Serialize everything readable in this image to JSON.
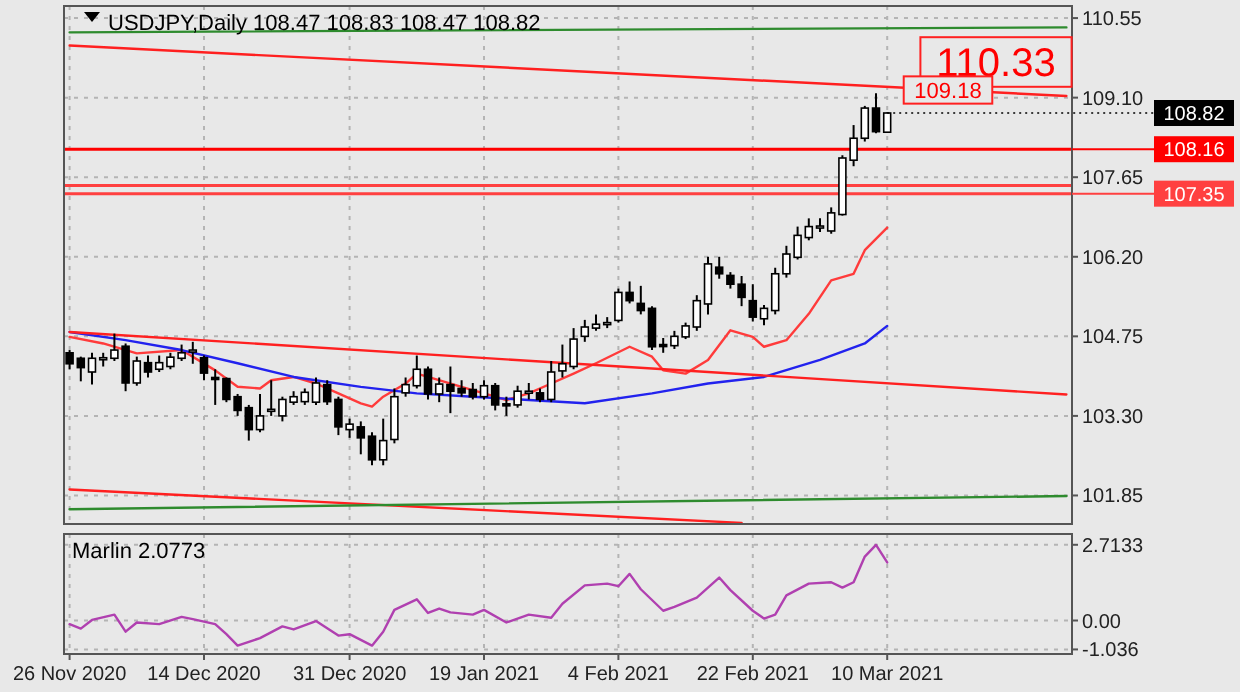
{
  "chart_data": [
    {
      "type": "candlestick",
      "title": "USDJPY,Daily 108.47 108.83 108.47 108.82",
      "categories": [
        "26 Nov 2020",
        null,
        null,
        null,
        null,
        null,
        null,
        null,
        null,
        null,
        null,
        null,
        "14 Dec 2020",
        null,
        null,
        null,
        null,
        null,
        null,
        null,
        null,
        null,
        null,
        null,
        null,
        "31 Dec 2020",
        null,
        null,
        null,
        null,
        null,
        null,
        null,
        null,
        null,
        null,
        null,
        "19 Jan 2021",
        null,
        null,
        null,
        null,
        null,
        null,
        null,
        null,
        null,
        null,
        null,
        "4 Feb 2021",
        null,
        null,
        null,
        null,
        null,
        null,
        null,
        null,
        null,
        null,
        null,
        "22 Feb 2021",
        null,
        null,
        null,
        null,
        null,
        null,
        null,
        null,
        null,
        null,
        null,
        "10 Mar 2021",
        null,
        null,
        null,
        null,
        null,
        null,
        null,
        null,
        null,
        null,
        null,
        null,
        null,
        null,
        null,
        null
      ],
      "ohlc": [
        [
          104.45,
          104.5,
          104.15,
          104.25
        ],
        [
          104.35,
          104.38,
          103.93,
          104.18
        ],
        [
          104.1,
          104.45,
          103.87,
          104.35
        ],
        [
          104.33,
          104.45,
          104.2,
          104.36
        ],
        [
          104.35,
          104.8,
          104.3,
          104.5
        ],
        [
          104.57,
          104.62,
          103.75,
          103.9
        ],
        [
          103.9,
          104.38,
          103.85,
          104.3
        ],
        [
          104.27,
          104.4,
          104.0,
          104.1
        ],
        [
          104.15,
          104.4,
          104.1,
          104.27
        ],
        [
          104.2,
          104.45,
          104.15,
          104.37
        ],
        [
          104.35,
          104.6,
          104.3,
          104.45
        ],
        [
          104.48,
          104.65,
          104.25,
          104.5
        ],
        [
          104.36,
          104.4,
          103.95,
          104.08
        ],
        [
          104.0,
          104.15,
          103.5,
          103.98
        ],
        [
          103.98,
          104.0,
          103.55,
          103.6
        ],
        [
          103.65,
          103.7,
          103.3,
          103.4
        ],
        [
          103.45,
          103.5,
          102.85,
          103.05
        ],
        [
          103.05,
          103.7,
          103.0,
          103.3
        ],
        [
          103.4,
          103.95,
          103.3,
          103.42
        ],
        [
          103.3,
          103.65,
          103.2,
          103.6
        ],
        [
          103.55,
          103.75,
          103.5,
          103.65
        ],
        [
          103.56,
          103.8,
          103.5,
          103.73
        ],
        [
          103.55,
          104.0,
          103.5,
          103.9
        ],
        [
          103.87,
          103.95,
          103.5,
          103.56
        ],
        [
          103.6,
          103.65,
          102.95,
          103.1
        ],
        [
          103.05,
          103.25,
          102.9,
          103.15
        ],
        [
          103.1,
          103.2,
          102.6,
          102.9
        ],
        [
          102.93,
          103.0,
          102.4,
          102.5
        ],
        [
          102.5,
          103.25,
          102.4,
          102.85
        ],
        [
          102.87,
          103.8,
          102.8,
          103.65
        ],
        [
          103.72,
          104.0,
          103.65,
          103.87
        ],
        [
          103.85,
          104.4,
          103.8,
          104.15
        ],
        [
          104.15,
          104.2,
          103.6,
          103.7
        ],
        [
          103.7,
          104.0,
          103.55,
          103.88
        ],
        [
          103.87,
          104.2,
          103.35,
          103.75
        ],
        [
          103.8,
          103.95,
          103.65,
          103.72
        ],
        [
          103.78,
          103.9,
          103.6,
          103.65
        ],
        [
          103.65,
          103.95,
          103.6,
          103.85
        ],
        [
          103.85,
          103.9,
          103.4,
          103.5
        ],
        [
          103.52,
          103.65,
          103.3,
          103.5
        ],
        [
          103.5,
          103.85,
          103.45,
          103.75
        ],
        [
          103.74,
          103.9,
          103.6,
          103.75
        ],
        [
          103.72,
          103.8,
          103.55,
          103.6
        ],
        [
          103.6,
          104.3,
          103.55,
          104.1
        ],
        [
          104.12,
          104.6,
          104.0,
          104.25
        ],
        [
          104.2,
          104.9,
          104.15,
          104.7
        ],
        [
          104.75,
          105.05,
          104.65,
          104.92
        ],
        [
          104.9,
          105.15,
          104.85,
          104.97
        ],
        [
          104.98,
          105.1,
          104.9,
          105.0
        ],
        [
          105.04,
          105.62,
          105.0,
          105.55
        ],
        [
          105.55,
          105.75,
          105.35,
          105.4
        ],
        [
          105.35,
          105.67,
          105.15,
          105.22
        ],
        [
          105.26,
          105.3,
          104.5,
          104.56
        ],
        [
          104.6,
          104.72,
          104.45,
          104.58
        ],
        [
          104.58,
          104.85,
          104.52,
          104.75
        ],
        [
          104.74,
          105.0,
          104.7,
          104.94
        ],
        [
          104.92,
          105.5,
          104.85,
          105.4
        ],
        [
          105.34,
          106.2,
          105.15,
          106.07
        ],
        [
          106.01,
          106.2,
          105.8,
          105.89
        ],
        [
          105.86,
          105.92,
          105.62,
          105.7
        ],
        [
          105.7,
          105.85,
          105.3,
          105.46
        ],
        [
          105.4,
          105.7,
          105.02,
          105.1
        ],
        [
          105.07,
          105.32,
          104.95,
          105.26
        ],
        [
          105.22,
          106.0,
          105.15,
          105.89
        ],
        [
          105.89,
          106.4,
          105.82,
          106.25
        ],
        [
          106.19,
          106.75,
          106.15,
          106.59
        ],
        [
          106.55,
          106.9,
          106.5,
          106.75
        ],
        [
          106.74,
          106.9,
          106.65,
          106.76
        ],
        [
          106.67,
          107.1,
          106.62,
          107.0
        ],
        [
          106.97,
          108.05,
          106.95,
          108.0
        ],
        [
          107.96,
          108.6,
          107.85,
          108.36
        ],
        [
          108.36,
          108.95,
          108.3,
          108.91
        ],
        [
          108.91,
          109.18,
          108.45,
          108.48
        ],
        [
          108.47,
          108.83,
          108.47,
          108.82
        ],
        null,
        null,
        null,
        null,
        null,
        null,
        null,
        null,
        null,
        null,
        null,
        null,
        null,
        null,
        null,
        null
      ],
      "series": [
        {
          "type": "line",
          "color": "#ff3b3b",
          "values": [
            104.74,
            null,
            null,
            104.62,
            null,
            null,
            104.44,
            null,
            null,
            null,
            104.5,
            null,
            null,
            104.13,
            null,
            103.83,
            null,
            103.8,
            103.95,
            null,
            104.01,
            null,
            103.89,
            null,
            103.71,
            null,
            103.53,
            103.47,
            103.65,
            null,
            103.89,
            104.07,
            104.01,
            null,
            null,
            103.83,
            null,
            null,
            103.65,
            103.59,
            null,
            103.71,
            null,
            103.89,
            null,
            104.07,
            null,
            104.26,
            null,
            null,
            104.56,
            null,
            104.38,
            104.13,
            null,
            104.07,
            null,
            104.32,
            null,
            104.86,
            null,
            104.74,
            104.56,
            null,
            104.68,
            null,
            105.16,
            null,
            105.77,
            null,
            105.89,
            106.32,
            null,
            106.73,
            null,
            null,
            null,
            null,
            null,
            null,
            null,
            null,
            null,
            null,
            null,
            null,
            null,
            null,
            null,
            null
          ]
        },
        {
          "type": "line",
          "color": "#2222ee",
          "values": [
            104.83,
            null,
            null,
            null,
            null,
            104.68,
            null,
            null,
            null,
            null,
            104.5,
            null,
            null,
            null,
            null,
            104.26,
            null,
            null,
            null,
            null,
            104.01,
            null,
            null,
            null,
            null,
            null,
            103.83,
            null,
            null,
            null,
            null,
            103.71,
            null,
            null,
            null,
            null,
            103.65,
            null,
            null,
            null,
            null,
            103.59,
            null,
            null,
            null,
            null,
            103.53,
            null,
            null,
            null,
            null,
            null,
            103.71,
            null,
            null,
            null,
            null,
            103.89,
            null,
            null,
            null,
            null,
            104.01,
            null,
            null,
            null,
            null,
            104.32,
            null,
            null,
            null,
            104.62,
            null,
            104.94,
            null,
            null,
            null,
            null,
            null,
            null,
            null,
            null,
            null,
            null,
            null,
            null,
            null,
            null,
            null,
            null
          ]
        },
        {
          "type": "line",
          "color": "#ff2020",
          "values": [
            110.05,
            null,
            null,
            null,
            null,
            null,
            null,
            null,
            null,
            null,
            null,
            null,
            null,
            null,
            null,
            null,
            null,
            null,
            null,
            null,
            null,
            null,
            null,
            null,
            null,
            null,
            null,
            null,
            null,
            null,
            null,
            null,
            null,
            null,
            null,
            null,
            null,
            null,
            null,
            null,
            null,
            null,
            null,
            null,
            null,
            null,
            null,
            null,
            null,
            null,
            null,
            null,
            null,
            null,
            null,
            null,
            null,
            null,
            null,
            null,
            null,
            null,
            null,
            null,
            null,
            null,
            null,
            null,
            null,
            null,
            null,
            null,
            null,
            null,
            null,
            null,
            null,
            null,
            null,
            null,
            null,
            null,
            null,
            null,
            null,
            null,
            null,
            null,
            null,
            109.13
          ]
        },
        {
          "type": "line",
          "color": "#2e8b2e",
          "values": [
            110.29,
            null,
            null,
            null,
            null,
            null,
            null,
            null,
            null,
            null,
            null,
            null,
            null,
            null,
            null,
            null,
            null,
            null,
            null,
            null,
            null,
            null,
            null,
            null,
            null,
            null,
            null,
            null,
            null,
            null,
            null,
            null,
            null,
            null,
            null,
            null,
            null,
            null,
            null,
            null,
            null,
            null,
            null,
            null,
            null,
            null,
            null,
            null,
            null,
            null,
            null,
            null,
            null,
            null,
            null,
            null,
            null,
            null,
            null,
            null,
            null,
            null,
            null,
            null,
            null,
            null,
            null,
            null,
            null,
            null,
            null,
            null,
            null,
            null,
            null,
            null,
            null,
            null,
            null,
            null,
            null,
            null,
            null,
            null,
            null,
            null,
            null,
            null,
            null,
            110.38
          ]
        },
        {
          "type": "line",
          "color": "#ff2020",
          "values": [
            104.83,
            null,
            null,
            null,
            null,
            null,
            null,
            null,
            null,
            null,
            null,
            null,
            null,
            null,
            null,
            null,
            null,
            null,
            null,
            null,
            null,
            null,
            null,
            null,
            null,
            null,
            null,
            null,
            null,
            null,
            null,
            null,
            null,
            null,
            null,
            null,
            null,
            null,
            null,
            null,
            null,
            null,
            null,
            null,
            null,
            null,
            null,
            null,
            null,
            null,
            null,
            null,
            null,
            null,
            null,
            null,
            null,
            null,
            null,
            null,
            null,
            null,
            null,
            null,
            null,
            null,
            null,
            null,
            null,
            null,
            null,
            null,
            null,
            null,
            null,
            null,
            null,
            null,
            null,
            null,
            null,
            null,
            null,
            null,
            null,
            null,
            null,
            null,
            null,
            103.69
          ]
        },
        {
          "type": "line",
          "color": "#ff2020",
          "values": [
            101.96,
            null,
            null,
            null,
            null,
            null,
            null,
            null,
            null,
            null,
            null,
            null,
            null,
            null,
            null,
            null,
            null,
            null,
            null,
            null,
            null,
            null,
            null,
            null,
            null,
            null,
            null,
            null,
            null,
            null,
            null,
            null,
            null,
            null,
            null,
            null,
            null,
            null,
            null,
            null,
            null,
            null,
            null,
            null,
            null,
            null,
            null,
            null,
            null,
            null,
            null,
            null,
            null,
            null,
            null,
            null,
            null,
            null,
            null,
            null,
            101.35,
            null,
            null,
            null,
            null,
            null,
            null,
            null,
            null,
            null,
            null,
            null,
            null,
            null,
            null,
            null,
            null,
            null,
            null,
            null,
            null,
            null,
            null,
            null,
            null,
            null,
            null,
            null,
            null,
            null
          ]
        },
        {
          "type": "line",
          "color": "#2e8b2e",
          "values": [
            101.6,
            null,
            null,
            null,
            null,
            null,
            null,
            null,
            null,
            null,
            null,
            null,
            null,
            null,
            null,
            null,
            null,
            null,
            null,
            null,
            null,
            null,
            null,
            null,
            null,
            null,
            null,
            null,
            null,
            null,
            null,
            null,
            null,
            null,
            null,
            null,
            null,
            null,
            null,
            null,
            null,
            null,
            null,
            null,
            null,
            null,
            null,
            null,
            null,
            null,
            null,
            null,
            null,
            null,
            null,
            null,
            null,
            null,
            null,
            null,
            null,
            null,
            null,
            null,
            null,
            null,
            null,
            null,
            null,
            null,
            null,
            null,
            null,
            null,
            null,
            null,
            null,
            null,
            null,
            null,
            null,
            null,
            null,
            null,
            null,
            null,
            null,
            null,
            null,
            101.84
          ]
        }
      ],
      "ylim": [
        101.33,
        110.77
      ],
      "yticks": [
        101.85,
        {
          "value": 103.3,
          "label": "103.30"
        },
        104.75,
        {
          "value": 106.2,
          "label": "106.20"
        },
        107.65,
        {
          "value": 109.1,
          "label": "109.10"
        },
        110.55
      ],
      "grid": true,
      "tick_labels": "y",
      "ref_lines": [
        {
          "axis": "y",
          "value": 108.16,
          "label": "108.16",
          "color": "#ff0000"
        },
        {
          "axis": "y",
          "value": 107.5,
          "label": null,
          "color": "#ff4040"
        },
        {
          "axis": "y",
          "value": 107.35,
          "label": "107.35",
          "color": "#ff4040"
        }
      ],
      "annotations": [
        "110.33",
        "109.18",
        {
          "text": "108.82",
          "x": "10 Mar 2021",
          "y": 108.82
        }
      ]
    },
    {
      "type": "line",
      "title": "Marlin 2.0773",
      "categories": [
        "26 Nov 2020",
        null,
        null,
        null,
        null,
        null,
        null,
        null,
        null,
        null,
        null,
        null,
        "14 Dec 2020",
        null,
        null,
        null,
        null,
        null,
        null,
        null,
        null,
        null,
        null,
        null,
        null,
        "31 Dec 2020",
        null,
        null,
        null,
        null,
        null,
        null,
        null,
        null,
        null,
        null,
        null,
        "19 Jan 2021",
        null,
        null,
        null,
        null,
        null,
        null,
        null,
        null,
        null,
        null,
        null,
        "4 Feb 2021",
        null,
        null,
        null,
        null,
        null,
        null,
        null,
        null,
        null,
        null,
        null,
        "22 Feb 2021",
        null,
        null,
        null,
        null,
        null,
        null,
        null,
        null,
        null,
        null,
        null,
        "10 Mar 2021",
        null,
        null,
        null,
        null,
        null,
        null,
        null,
        null,
        null,
        null,
        null,
        null,
        null,
        null,
        null,
        null
      ],
      "series": [
        {
          "color": "#b040b0",
          "values": [
            -0.13,
            -0.29,
            0.02,
            null,
            0.21,
            -0.4,
            -0.07,
            null,
            -0.13,
            null,
            0.13,
            0.05,
            null,
            -0.13,
            -0.49,
            -0.9,
            null,
            -0.63,
            null,
            -0.21,
            -0.32,
            null,
            -0.02,
            null,
            -0.54,
            -0.49,
            null,
            -0.9,
            -0.4,
            0.38,
            null,
            0.76,
            0.27,
            0.43,
            0.29,
            null,
            0.21,
            0.38,
            null,
            -0.07,
            null,
            0.21,
            null,
            0.1,
            0.6,
            null,
            1.26,
            null,
            1.32,
            1.23,
            1.67,
            1.12,
            null,
            0.35,
            0.49,
            null,
            0.82,
            null,
            1.54,
            1.09,
            null,
            0.35,
            0.07,
            0.21,
            0.9,
            null,
            1.32,
            null,
            1.37,
            1.18,
            1.37,
            2.29,
            2.71,
            2.08,
            null,
            null,
            null,
            null,
            null,
            null,
            null,
            null,
            null,
            null,
            null,
            null,
            null,
            null,
            null,
            null
          ]
        }
      ],
      "ylim": [
        -1.2,
        3.1
      ],
      "yticks": [
        {
          "value": 2.7133,
          "label": "2.7133"
        },
        {
          "value": 0,
          "label": "0.00"
        },
        {
          "value": -1.036,
          "label": "-1.036"
        }
      ],
      "grid": true
    }
  ]
}
